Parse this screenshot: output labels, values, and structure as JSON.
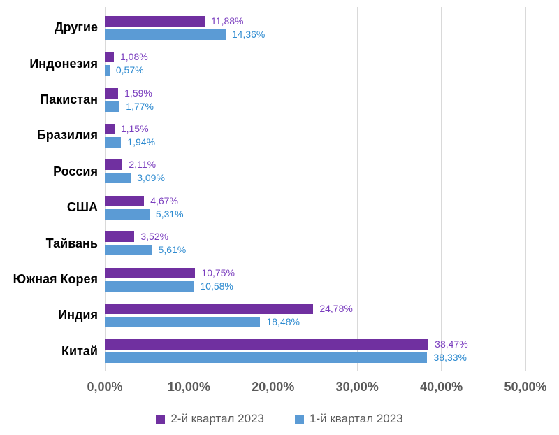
{
  "chart_data": {
    "type": "bar",
    "orientation": "horizontal",
    "title": "",
    "categories": [
      "Другие",
      "Индонезия",
      "Пакистан",
      "Бразилия",
      "Россия",
      "США",
      "Тайвань",
      "Южная Корея",
      "Индия",
      "Китай"
    ],
    "series": [
      {
        "name": "2-й квартал 2023",
        "color": "#7030A0",
        "label_color": "#7A3DBE",
        "values": [
          11.88,
          1.08,
          1.59,
          1.15,
          2.11,
          4.67,
          3.52,
          10.75,
          24.78,
          38.47
        ],
        "labels": [
          "11,88%",
          "1,08%",
          "1,59%",
          "1,15%",
          "2,11%",
          "4,67%",
          "3,52%",
          "10,75%",
          "24,78%",
          "38,47%"
        ]
      },
      {
        "name": "1-й квартал 2023",
        "color": "#5B9BD5",
        "label_color": "#2E8BD0",
        "values": [
          14.36,
          0.57,
          1.77,
          1.94,
          3.09,
          5.31,
          5.61,
          10.58,
          18.48,
          38.33
        ],
        "labels": [
          "14,36%",
          "0,57%",
          "1,77%",
          "1,94%",
          "3,09%",
          "5,31%",
          "5,61%",
          "10,58%",
          "18,48%",
          "38,33%"
        ]
      }
    ],
    "x_axis": {
      "ticks": [
        "0,00%",
        "10,00%",
        "20,00%",
        "30,00%",
        "40,00%",
        "50,00%"
      ],
      "tick_values": [
        0,
        10,
        20,
        30,
        40,
        50
      ],
      "max": 50
    },
    "grid": true,
    "legend_position": "bottom",
    "gridline_color": "#D9D9D9",
    "axis_text_color": "#595959",
    "category_text_color": "#000000",
    "background_color": "#FFFFFF"
  }
}
